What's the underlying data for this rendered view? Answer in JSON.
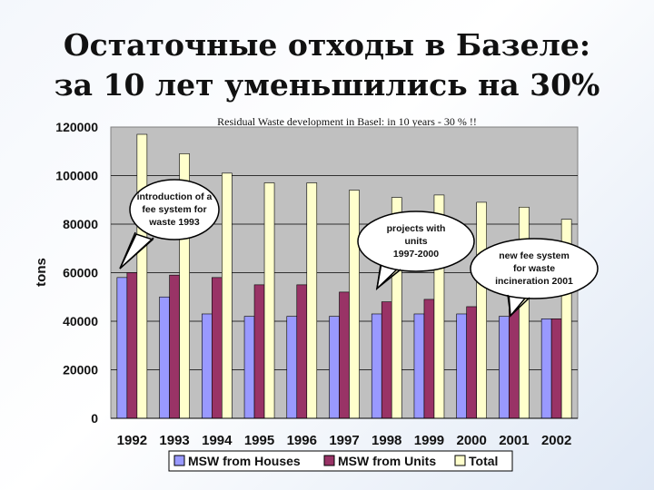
{
  "slide_title": {
    "line1": "Остаточные отходы в Базеле:",
    "line2": "за 10 лет уменьшились на 30%"
  },
  "chart_data": {
    "type": "bar",
    "title": "Residual Waste development in Basel: in 10 years - 30 % !!",
    "ylabel": "tons",
    "xlabel": "",
    "ylim": [
      0,
      120000
    ],
    "yticks": [
      "0",
      "20000",
      "40000",
      "60000",
      "80000",
      "100000",
      "120000"
    ],
    "grid": true,
    "legend_position": "bottom",
    "categories": [
      "1992",
      "1993",
      "1994",
      "1995",
      "1996",
      "1997",
      "1998",
      "1999",
      "2000",
      "2001",
      "2002"
    ],
    "series": [
      {
        "name": "MSW from Houses",
        "color": "#9999ff",
        "values": [
          58000,
          50000,
          43000,
          42000,
          42000,
          42000,
          43000,
          43000,
          43000,
          42000,
          41000
        ]
      },
      {
        "name": "MSW from Units",
        "color": "#993366",
        "values": [
          60000,
          59000,
          58000,
          55000,
          55000,
          52000,
          48000,
          49000,
          46000,
          45000,
          41000
        ]
      },
      {
        "name": "Total",
        "color": "#ffffcc",
        "values": [
          117000,
          109000,
          101000,
          97000,
          97000,
          94000,
          91000,
          92000,
          89000,
          87000,
          82000
        ]
      }
    ],
    "annotations": [
      {
        "lines": [
          "introduction of a",
          "fee system for",
          "waste 1993"
        ]
      },
      {
        "lines": [
          "projects with",
          "units",
          "1997-2000"
        ]
      },
      {
        "lines": [
          "new fee system",
          "for waste",
          "incineration 2001"
        ]
      }
    ]
  }
}
